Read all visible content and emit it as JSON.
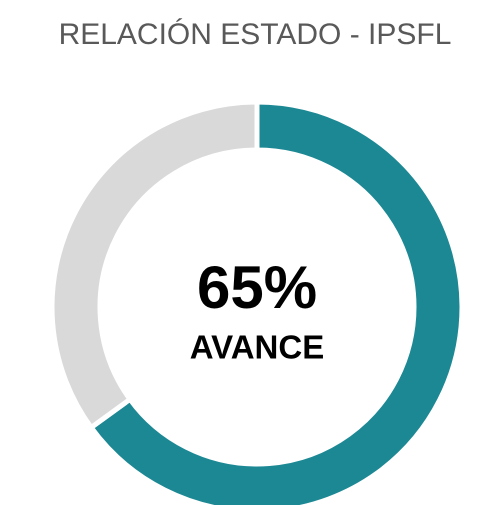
{
  "chart_data": {
    "type": "donut",
    "title": "RELACIÓN ESTADO - IPSFL",
    "values": [
      65,
      35
    ],
    "value_labels": [
      "65%",
      null
    ],
    "colors": [
      "#1b8894",
      "#d9d9d9"
    ],
    "center_text": "AVANCE"
  }
}
